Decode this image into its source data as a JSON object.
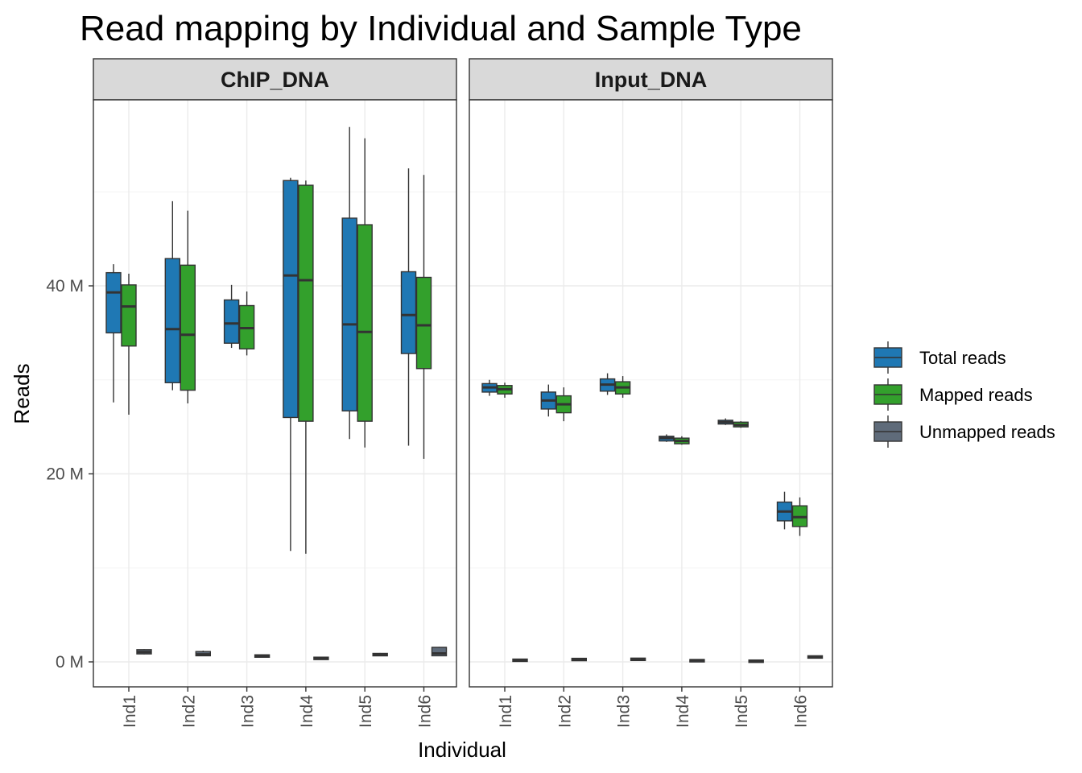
{
  "chart_data": {
    "type": "boxplot",
    "title": "Read mapping by Individual and Sample Type",
    "xlabel": "Individual",
    "ylabel": "Reads",
    "ylim": [
      -2.5,
      60
    ],
    "y_ticks": [
      0,
      20,
      40
    ],
    "y_tick_labels": [
      "0 M",
      "20 M",
      "40 M"
    ],
    "categories": [
      "Ind1",
      "Ind2",
      "Ind3",
      "Ind4",
      "Ind5",
      "Ind6"
    ],
    "legend": {
      "position": "right",
      "entries": [
        {
          "name": "Total reads",
          "color": "#1f78b4"
        },
        {
          "name": "Mapped reads",
          "color": "#33a02c"
        },
        {
          "name": "Unmapped reads",
          "color": "#5f6b7a"
        }
      ]
    },
    "panels": [
      {
        "name": "ChIP_DNA",
        "series": [
          {
            "name": "Total reads",
            "boxes": [
              {
                "min": 27.6,
                "q1": 35.0,
                "median": 39.3,
                "q3": 41.4,
                "max": 42.3
              },
              {
                "min": 28.9,
                "q1": 29.7,
                "median": 35.4,
                "q3": 42.9,
                "max": 49.0
              },
              {
                "min": 33.4,
                "q1": 33.9,
                "median": 36.0,
                "q3": 38.5,
                "max": 40.1
              },
              {
                "min": 11.8,
                "q1": 26.0,
                "median": 41.1,
                "q3": 51.2,
                "max": 51.5
              },
              {
                "min": 23.7,
                "q1": 26.7,
                "median": 35.9,
                "q3": 47.2,
                "max": 56.9
              },
              {
                "min": 23.0,
                "q1": 32.8,
                "median": 36.9,
                "q3": 41.5,
                "max": 52.5
              }
            ]
          },
          {
            "name": "Mapped reads",
            "boxes": [
              {
                "min": 26.3,
                "q1": 33.6,
                "median": 37.8,
                "q3": 40.1,
                "max": 41.3
              },
              {
                "min": 27.5,
                "q1": 28.9,
                "median": 34.8,
                "q3": 42.2,
                "max": 48.0
              },
              {
                "min": 32.6,
                "q1": 33.3,
                "median": 35.5,
                "q3": 37.9,
                "max": 39.4
              },
              {
                "min": 11.5,
                "q1": 25.6,
                "median": 40.6,
                "q3": 50.7,
                "max": 51.2
              },
              {
                "min": 22.8,
                "q1": 25.6,
                "median": 35.1,
                "q3": 46.5,
                "max": 55.7
              },
              {
                "min": 21.6,
                "q1": 31.2,
                "median": 35.8,
                "q3": 40.9,
                "max": 51.8
              }
            ]
          },
          {
            "name": "Unmapped reads",
            "boxes": [
              {
                "min": 0.8,
                "q1": 0.85,
                "median": 1.05,
                "q3": 1.3,
                "max": 1.35
              },
              {
                "min": 0.6,
                "q1": 0.65,
                "median": 0.8,
                "q3": 1.1,
                "max": 1.2
              },
              {
                "min": 0.5,
                "q1": 0.55,
                "median": 0.65,
                "q3": 0.75,
                "max": 0.8
              },
              {
                "min": 0.25,
                "q1": 0.3,
                "median": 0.4,
                "q3": 0.5,
                "max": 0.55
              },
              {
                "min": 0.7,
                "q1": 0.72,
                "median": 0.8,
                "q3": 0.9,
                "max": 0.95
              },
              {
                "min": 0.6,
                "q1": 0.65,
                "median": 0.9,
                "q3": 1.55,
                "max": 1.6
              }
            ]
          }
        ]
      },
      {
        "name": "Input_DNA",
        "series": [
          {
            "name": "Total reads",
            "boxes": [
              {
                "min": 28.3,
                "q1": 28.7,
                "median": 29.2,
                "q3": 29.6,
                "max": 30.0
              },
              {
                "min": 26.1,
                "q1": 26.9,
                "median": 27.8,
                "q3": 28.7,
                "max": 29.5
              },
              {
                "min": 28.4,
                "q1": 28.8,
                "median": 29.5,
                "q3": 30.1,
                "max": 30.7
              },
              {
                "min": 23.4,
                "q1": 23.5,
                "median": 23.8,
                "q3": 24.0,
                "max": 24.2
              },
              {
                "min": 25.2,
                "q1": 25.3,
                "median": 25.5,
                "q3": 25.7,
                "max": 25.9
              },
              {
                "min": 14.1,
                "q1": 15.0,
                "median": 16.0,
                "q3": 17.0,
                "max": 18.1
              }
            ]
          },
          {
            "name": "Mapped reads",
            "boxes": [
              {
                "min": 28.1,
                "q1": 28.5,
                "median": 29.0,
                "q3": 29.4,
                "max": 29.7
              },
              {
                "min": 25.6,
                "q1": 26.5,
                "median": 27.4,
                "q3": 28.3,
                "max": 29.2
              },
              {
                "min": 28.1,
                "q1": 28.5,
                "median": 29.2,
                "q3": 29.8,
                "max": 30.4
              },
              {
                "min": 23.1,
                "q1": 23.2,
                "median": 23.5,
                "q3": 23.8,
                "max": 24.0
              },
              {
                "min": 24.9,
                "q1": 25.0,
                "median": 25.2,
                "q3": 25.5,
                "max": 25.6
              },
              {
                "min": 13.4,
                "q1": 14.4,
                "median": 15.4,
                "q3": 16.6,
                "max": 17.5
              }
            ]
          },
          {
            "name": "Unmapped reads",
            "boxes": [
              {
                "min": 0.1,
                "q1": 0.12,
                "median": 0.2,
                "q3": 0.3,
                "max": 0.32
              },
              {
                "min": 0.15,
                "q1": 0.18,
                "median": 0.28,
                "q3": 0.38,
                "max": 0.4
              },
              {
                "min": 0.2,
                "q1": 0.22,
                "median": 0.3,
                "q3": 0.4,
                "max": 0.42
              },
              {
                "min": 0.1,
                "q1": 0.12,
                "median": 0.18,
                "q3": 0.25,
                "max": 0.27
              },
              {
                "min": 0.05,
                "q1": 0.07,
                "median": 0.12,
                "q3": 0.2,
                "max": 0.22
              },
              {
                "min": 0.4,
                "q1": 0.42,
                "median": 0.55,
                "q3": 0.65,
                "max": 0.68
              }
            ]
          }
        ]
      }
    ]
  }
}
